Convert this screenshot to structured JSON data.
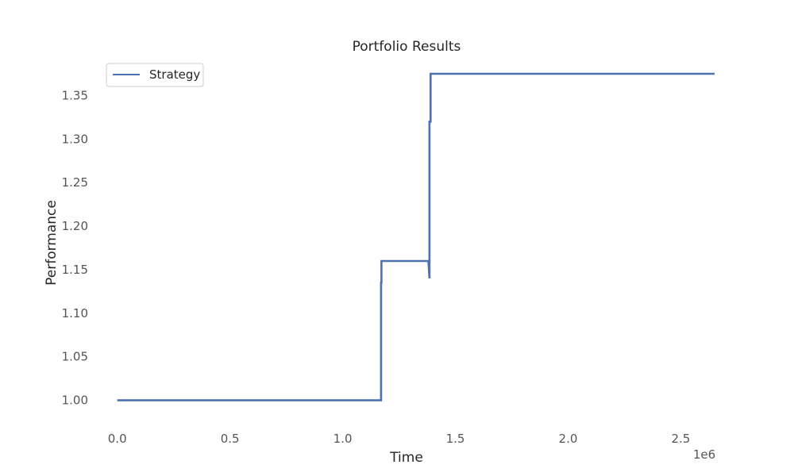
{
  "chart_data": {
    "type": "line",
    "title": "Portfolio Results",
    "xlabel": "Time",
    "ylabel": "Performance",
    "x_offset_label": "1e6",
    "xlim": [
      -0.08,
      2.65
    ],
    "ylim": [
      0.975,
      1.385
    ],
    "x_ticks": [
      0.0,
      0.5,
      1.0,
      1.5,
      2.0,
      2.5
    ],
    "x_tick_labels": [
      "0.0",
      "0.5",
      "1.0",
      "1.5",
      "2.0",
      "2.5"
    ],
    "y_ticks": [
      1.0,
      1.05,
      1.1,
      1.15,
      1.2,
      1.25,
      1.3,
      1.35
    ],
    "y_tick_labels": [
      "1.00",
      "1.05",
      "1.10",
      "1.15",
      "1.20",
      "1.25",
      "1.30",
      "1.35"
    ],
    "grid": false,
    "legend": {
      "position": "top-left",
      "entries": [
        "Strategy"
      ]
    },
    "colors": {
      "series": "#4c72b0",
      "text": "#262626",
      "tick": "#555555",
      "legend_border": "#cccccc"
    },
    "series": [
      {
        "name": "Strategy",
        "x": [
          0.0,
          1.17,
          1.17,
          1.172,
          1.172,
          1.38,
          1.385,
          1.385,
          1.39,
          1.39,
          2.65
        ],
        "y": [
          1.0,
          1.0,
          1.135,
          1.135,
          1.16,
          1.16,
          1.14,
          1.32,
          1.32,
          1.375,
          1.375
        ]
      }
    ]
  }
}
